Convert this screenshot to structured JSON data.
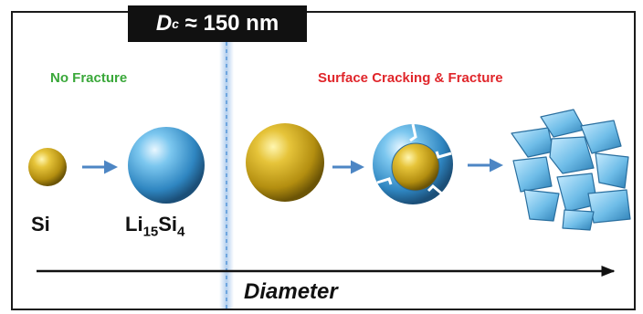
{
  "diagram": {
    "title": {
      "symbol": "D",
      "subscript": "c",
      "value_text": "≈ 150 nm"
    },
    "left_caption": "No Fracture",
    "right_caption": "Surface Cracking & Fracture",
    "silicon_label": "Si",
    "lithiated_label": {
      "part1": "Li",
      "sub1": "15",
      "part2": "Si",
      "sub2": "4"
    },
    "axis_label": "Diameter",
    "colors": {
      "caption_green": "#3aa83a",
      "caption_red": "#e0262b",
      "silicon_gold": "#c9a41a",
      "lithiated_blue": "#4aa7dc",
      "arrow_blue": "#4d86c4",
      "threshold_line": "#6fa6df"
    }
  }
}
